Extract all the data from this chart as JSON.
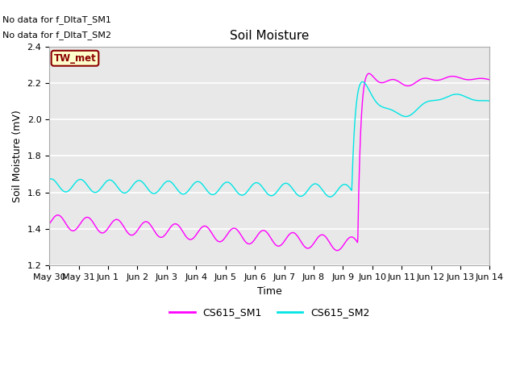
{
  "title": "Soil Moisture",
  "xlabel": "Time",
  "ylabel": "Soil Moisture (mV)",
  "ylim": [
    1.2,
    2.4
  ],
  "bg_color": "#e8e8e8",
  "fig_color": "#ffffff",
  "annotations": [
    "No data for f_DltaT_SM1",
    "No data for f_DltaT_SM2"
  ],
  "tw_met_label": "TW_met",
  "legend_labels": [
    "CS615_SM1",
    "CS615_SM2"
  ],
  "sm1_color": "#ff00ff",
  "sm2_color": "#00e5e5",
  "x_tick_labels": [
    "May 30",
    "May 31",
    "Jun 1",
    "Jun 2",
    "Jun 3",
    "Jun 4",
    "Jun 5",
    "Jun 6",
    "Jun 7",
    "Jun 8",
    "Jun 9",
    "Jun 10",
    "Jun 11",
    "Jun 12",
    "Jun 13",
    "Jun 14"
  ],
  "n_days": 15,
  "points_per_day": 96
}
